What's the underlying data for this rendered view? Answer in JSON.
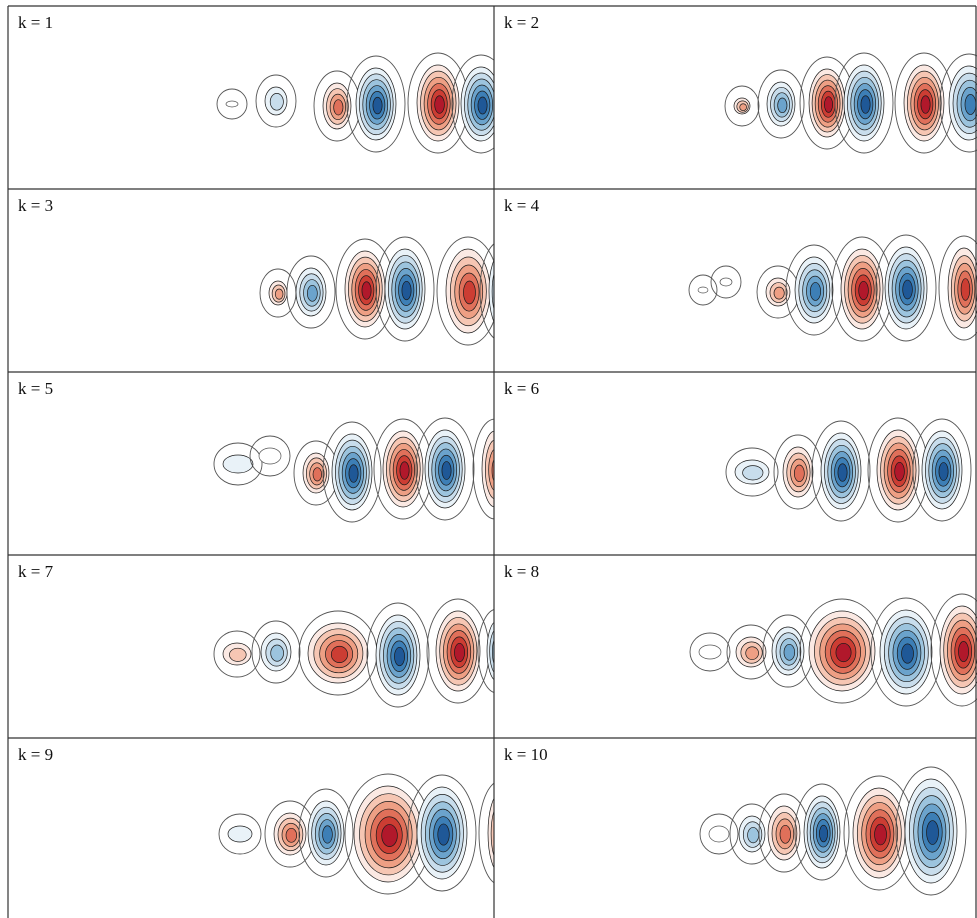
{
  "figure": {
    "panels": [
      {
        "label": "k = 1"
      },
      {
        "label": "k = 2"
      },
      {
        "label": "k = 3"
      },
      {
        "label": "k = 4"
      },
      {
        "label": "k = 5"
      },
      {
        "label": "k = 6"
      },
      {
        "label": "k = 7"
      },
      {
        "label": "k = 8"
      },
      {
        "label": "k = 9"
      },
      {
        "label": "k = 10"
      }
    ],
    "colors": {
      "positive_scale": [
        "#fbe9e3",
        "#f6c6b3",
        "#ee9f84",
        "#e0705a",
        "#cc3d33",
        "#b1182b"
      ],
      "negative_scale": [
        "#e9f2f8",
        "#c8ddec",
        "#9cc4de",
        "#6ba3cc",
        "#3d7fb6",
        "#1f5897"
      ],
      "contour_line": "#555555",
      "frame": "#333333"
    }
  }
}
